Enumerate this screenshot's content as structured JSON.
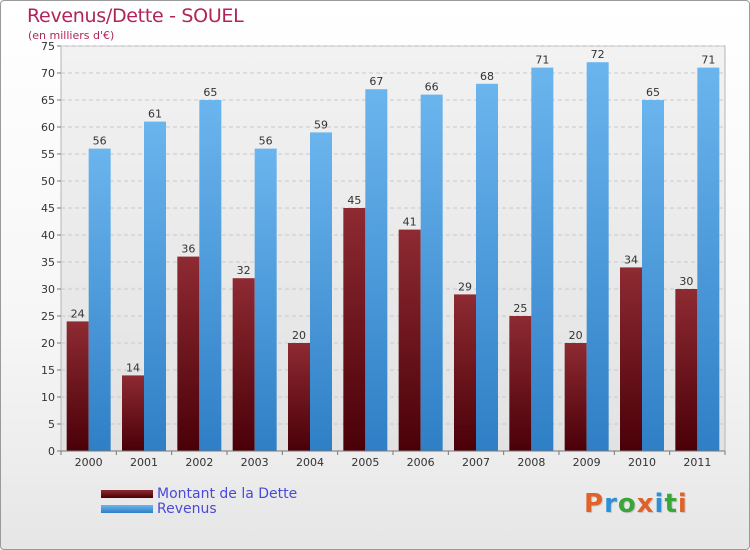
{
  "header": {
    "title": "Revenus/Dette - SOUEL",
    "subtitle": "(en milliers d'€)"
  },
  "legend": {
    "items": [
      {
        "label": "Montant de la Dette",
        "color": "#6b0a14"
      },
      {
        "label": "Revenus",
        "color": "#3f96de"
      }
    ]
  },
  "logo": {
    "text": "Proxiti",
    "letter_colors": [
      "#e0622a",
      "#2e8fd6",
      "#3aa63a",
      "#e0622a",
      "#2e8fd6",
      "#3aa63a",
      "#e0622a"
    ]
  },
  "chart_data": {
    "type": "bar",
    "title": "Revenus/Dette - SOUEL",
    "subtitle": "(en milliers d'€)",
    "categories": [
      "2000",
      "2001",
      "2002",
      "2003",
      "2004",
      "2005",
      "2006",
      "2007",
      "2008",
      "2009",
      "2010",
      "2011"
    ],
    "series": [
      {
        "name": "Montant de la Dette",
        "color": "#6b0a14",
        "values": [
          24,
          14,
          36,
          32,
          20,
          45,
          41,
          29,
          25,
          20,
          34,
          30
        ]
      },
      {
        "name": "Revenus",
        "color": "#3f96de",
        "values": [
          56,
          61,
          65,
          56,
          59,
          67,
          66,
          68,
          71,
          72,
          65,
          71
        ]
      }
    ],
    "ylim": [
      0,
      75
    ],
    "yticks": [
      0,
      5,
      10,
      15,
      20,
      25,
      30,
      35,
      40,
      45,
      50,
      55,
      60,
      65,
      70,
      75
    ],
    "grid": true,
    "legend_position": "bottom-left"
  }
}
